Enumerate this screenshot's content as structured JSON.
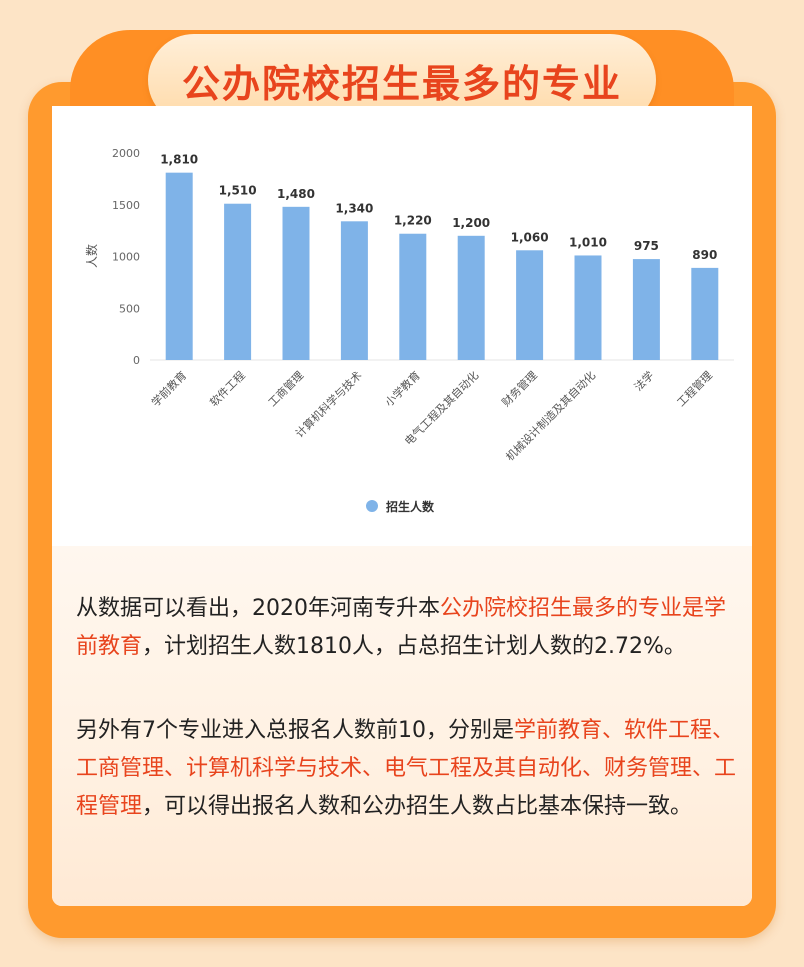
{
  "title": "公办院校招生最多的专业",
  "chart_data": {
    "type": "bar",
    "categories": [
      "学前教育",
      "软件工程",
      "工商管理",
      "计算机科学与技术",
      "小学教育",
      "电气工程及其自动化",
      "财务管理",
      "机械设计制造及其自动化",
      "法学",
      "工程管理"
    ],
    "series": [
      {
        "name": "招生人数",
        "values": [
          1810,
          1510,
          1480,
          1340,
          1220,
          1200,
          1060,
          1010,
          975,
          890
        ]
      }
    ],
    "value_labels": [
      "1,810",
      "1,510",
      "1,480",
      "1,340",
      "1,220",
      "1,200",
      "1,060",
      "1,010",
      "975",
      "890"
    ],
    "ylabel": "人数",
    "yticks": [
      0,
      500,
      1000,
      1500,
      2000
    ],
    "ylim": [
      0,
      2000
    ],
    "legend": "bottom-center",
    "grid": false,
    "bar_color": "#7fb3e8"
  },
  "paragraph1": [
    {
      "text": "从数据可以看出，2020年河南专升本",
      "hl": false
    },
    {
      "text": "公办院校招生最多的专业是学前教育",
      "hl": true
    },
    {
      "text": "，计划招生人数1810人，占总招生计划人数的2.72%。",
      "hl": false
    }
  ],
  "paragraph2": [
    {
      "text": "另外有7个专业进入总报名人数前10，分别是",
      "hl": false
    },
    {
      "text": "学前教育、软件工程、工商管理、计算机科学与技术、电气工程及其自动化、财务管理、工程管理",
      "hl": true
    },
    {
      "text": "，可以得出报名人数和公办招生人数占比基本保持一致。",
      "hl": false
    }
  ],
  "colors": {
    "accent": "#e8441d",
    "frame": "#ff9a2e",
    "background": "#fde4c6"
  }
}
